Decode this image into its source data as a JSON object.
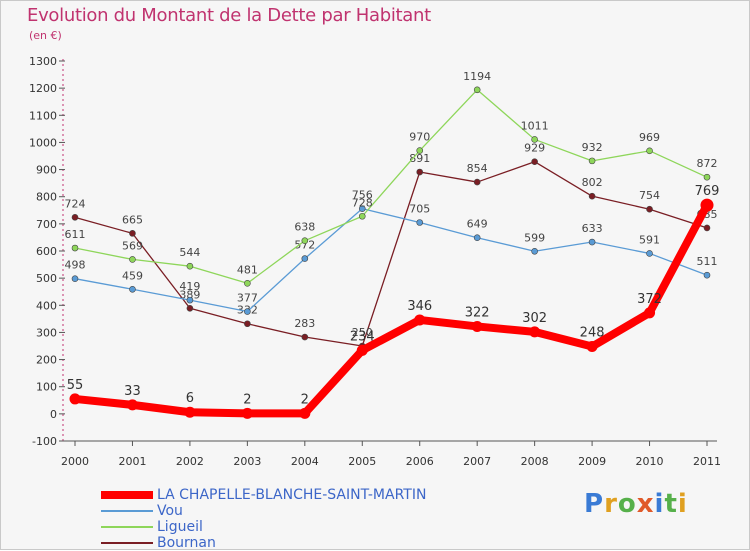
{
  "title": "Evolution du Montant de la Dette par Habitant",
  "unit_label": "(en €)",
  "logo": {
    "text": "Proxiti",
    "colors": [
      "#3a7bd5",
      "#e0a020",
      "#56b04a",
      "#e05a2a",
      "#3a7bd5",
      "#56b04a",
      "#e0a020"
    ]
  },
  "chart_data": {
    "type": "line",
    "x": [
      "2000",
      "2001",
      "2002",
      "2003",
      "2004",
      "2005",
      "2006",
      "2007",
      "2008",
      "2009",
      "2010",
      "2011"
    ],
    "ylim": [
      -100,
      1300
    ],
    "yticks": [
      -100,
      0,
      100,
      200,
      300,
      400,
      500,
      600,
      700,
      800,
      900,
      1000,
      1100,
      1200,
      1300
    ],
    "grid": false,
    "legend_position": "bottom-left",
    "series": [
      {
        "name": "LA CHAPELLE-BLANCHE-SAINT-MARTIN",
        "color": "#ff0000",
        "values": [
          55,
          33,
          6,
          2,
          2,
          234,
          346,
          322,
          302,
          248,
          372,
          769
        ]
      },
      {
        "name": "Vou",
        "color": "#5a9bd5",
        "values": [
          498,
          459,
          419,
          377,
          572,
          756,
          705,
          649,
          599,
          633,
          591,
          511
        ]
      },
      {
        "name": "Ligueil",
        "color": "#8ed65a",
        "values": [
          611,
          569,
          544,
          481,
          638,
          728,
          970,
          1194,
          1011,
          932,
          969,
          872
        ]
      },
      {
        "name": "Bournan",
        "color": "#7a1e24",
        "values": [
          724,
          665,
          389,
          332,
          283,
          250,
          891,
          854,
          929,
          802,
          754,
          685
        ]
      }
    ]
  }
}
